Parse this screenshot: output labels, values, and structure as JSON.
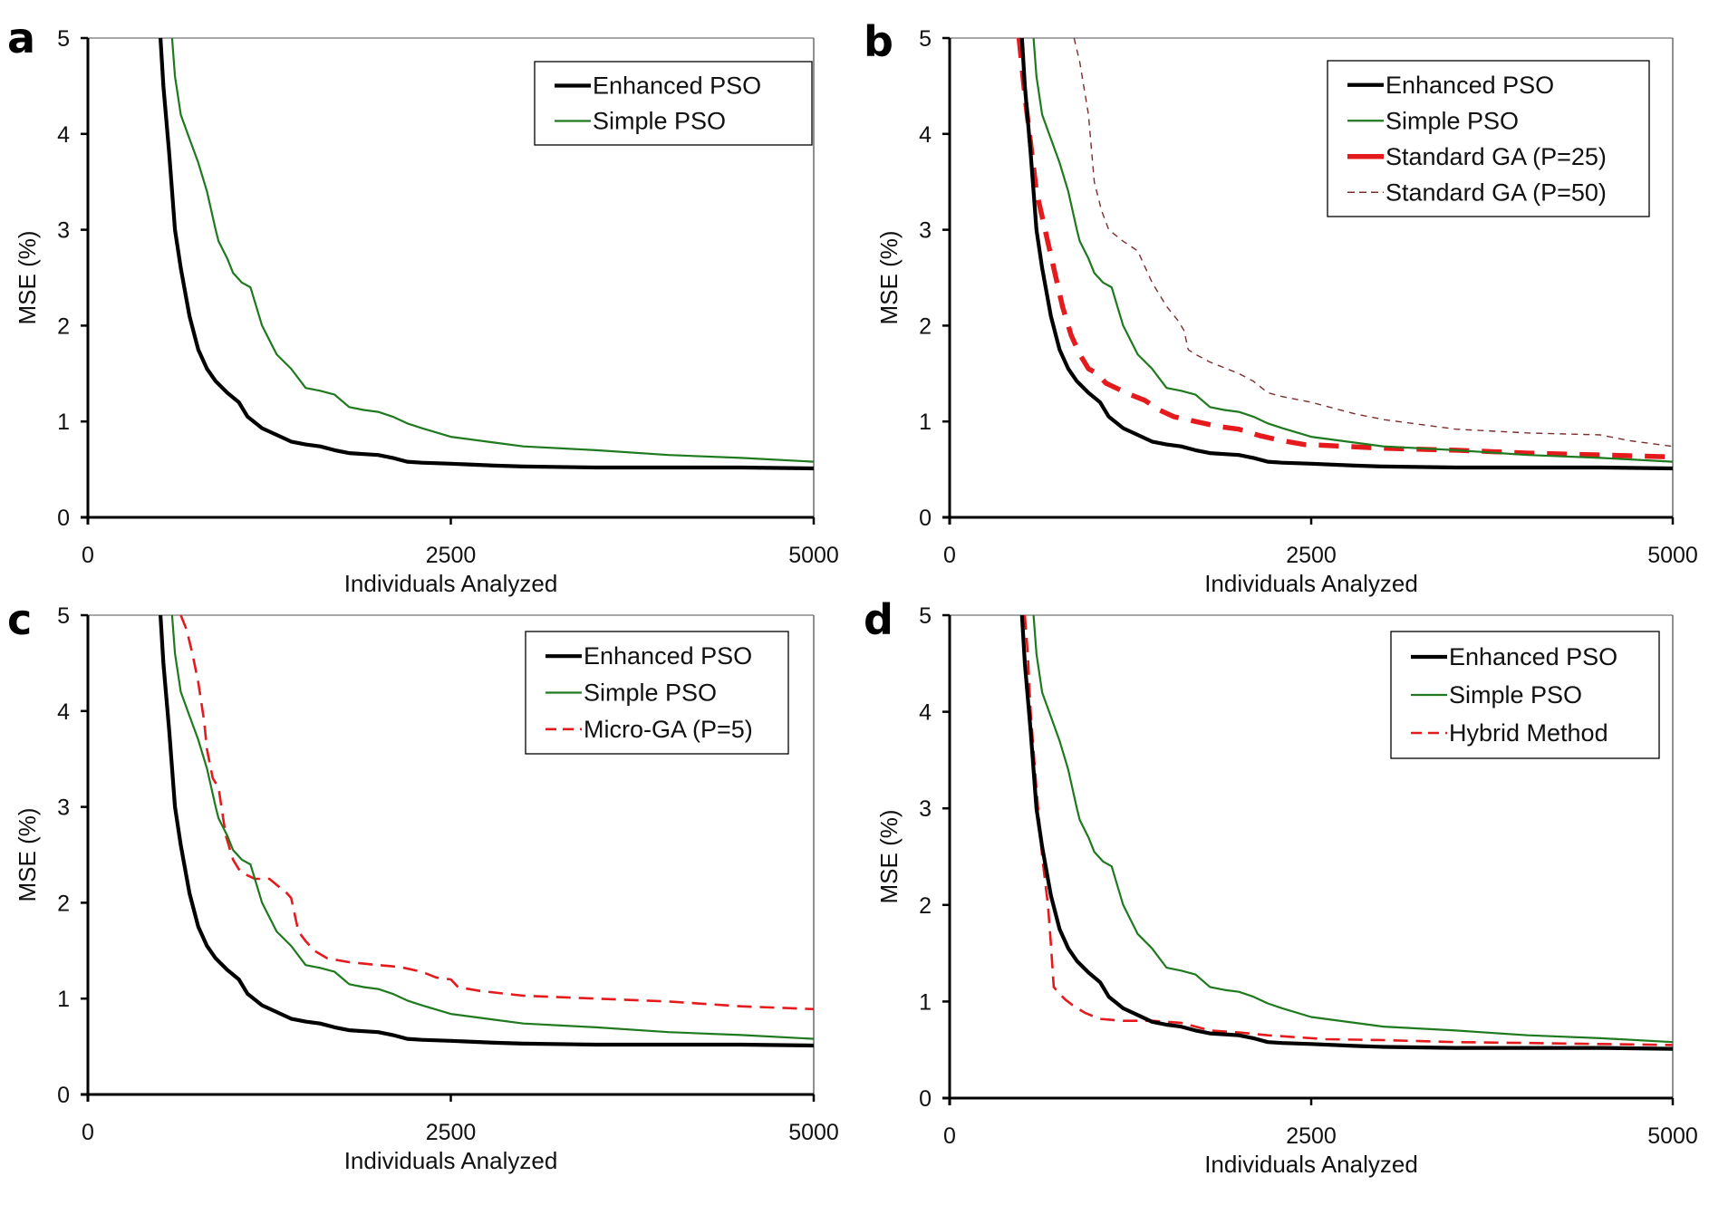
{
  "chart_data": [
    {
      "panel": "a",
      "type": "line",
      "title": "",
      "xlabel": "Individuals Analyzed",
      "ylabel": "MSE (%)",
      "xlim": [
        0,
        5000
      ],
      "ylim": [
        0,
        5
      ],
      "xticks": [
        "0",
        "2500",
        "5000"
      ],
      "yticks": [
        "0",
        "1",
        "2",
        "3",
        "4",
        "5"
      ],
      "grid": false,
      "legend_position": "top-right",
      "series": [
        {
          "name": "Enhanced PSO",
          "style": "solid-thick",
          "color": "#000000",
          "x": [
            500,
            520,
            560,
            600,
            640,
            700,
            760,
            820,
            880,
            960,
            1040,
            1100,
            1200,
            1300,
            1400,
            1500,
            1600,
            1700,
            1800,
            1900,
            2000,
            2100,
            2200,
            2300,
            2500,
            2800,
            3000,
            3500,
            4000,
            4500,
            5000
          ],
          "y": [
            5.0,
            4.5,
            3.8,
            3.0,
            2.6,
            2.1,
            1.75,
            1.55,
            1.42,
            1.3,
            1.2,
            1.05,
            0.93,
            0.86,
            0.79,
            0.76,
            0.74,
            0.7,
            0.67,
            0.66,
            0.65,
            0.62,
            0.58,
            0.57,
            0.56,
            0.54,
            0.53,
            0.52,
            0.52,
            0.52,
            0.51
          ]
        },
        {
          "name": "Simple PSO",
          "style": "solid-thin",
          "color": "#1f7a1f",
          "x": [
            580,
            600,
            640,
            700,
            760,
            820,
            880,
            900,
            960,
            1000,
            1060,
            1120,
            1160,
            1200,
            1300,
            1400,
            1500,
            1600,
            1700,
            1800,
            1900,
            2000,
            2100,
            2200,
            2300,
            2500,
            2800,
            3000,
            3500,
            4000,
            4500,
            5000
          ],
          "y": [
            5.0,
            4.6,
            4.2,
            3.95,
            3.7,
            3.4,
            3.0,
            2.88,
            2.7,
            2.55,
            2.45,
            2.4,
            2.2,
            2.0,
            1.7,
            1.55,
            1.35,
            1.32,
            1.28,
            1.15,
            1.12,
            1.1,
            1.05,
            0.98,
            0.93,
            0.84,
            0.78,
            0.74,
            0.7,
            0.65,
            0.62,
            0.58
          ]
        }
      ]
    },
    {
      "panel": "b",
      "type": "line",
      "title": "",
      "xlabel": "Individuals Analyzed",
      "ylabel": "MSE (%)",
      "xlim": [
        0,
        5000
      ],
      "ylim": [
        0,
        5
      ],
      "xticks": [
        "0",
        "2500",
        "5000"
      ],
      "yticks": [
        "0",
        "1",
        "2",
        "3",
        "4",
        "5"
      ],
      "grid": false,
      "legend_position": "top-right",
      "series": [
        {
          "name": "Enhanced PSO",
          "style": "solid-thick",
          "color": "#000000",
          "x": [
            500,
            520,
            560,
            600,
            640,
            700,
            760,
            820,
            880,
            960,
            1040,
            1100,
            1200,
            1300,
            1400,
            1500,
            1600,
            1700,
            1800,
            1900,
            2000,
            2100,
            2200,
            2300,
            2500,
            2800,
            3000,
            3500,
            4000,
            4500,
            5000
          ],
          "y": [
            5.0,
            4.5,
            3.8,
            3.0,
            2.6,
            2.1,
            1.75,
            1.55,
            1.42,
            1.3,
            1.2,
            1.05,
            0.93,
            0.86,
            0.79,
            0.76,
            0.74,
            0.7,
            0.67,
            0.66,
            0.65,
            0.62,
            0.58,
            0.57,
            0.56,
            0.54,
            0.53,
            0.52,
            0.52,
            0.52,
            0.51
          ]
        },
        {
          "name": "Simple PSO",
          "style": "solid-thin",
          "color": "#1f7a1f",
          "x": [
            580,
            600,
            640,
            700,
            760,
            820,
            880,
            900,
            960,
            1000,
            1060,
            1120,
            1160,
            1200,
            1300,
            1400,
            1500,
            1600,
            1700,
            1800,
            1900,
            2000,
            2100,
            2200,
            2300,
            2500,
            2800,
            3000,
            3500,
            4000,
            4500,
            5000
          ],
          "y": [
            5.0,
            4.6,
            4.2,
            3.95,
            3.7,
            3.4,
            3.0,
            2.88,
            2.7,
            2.55,
            2.45,
            2.4,
            2.2,
            2.0,
            1.7,
            1.55,
            1.35,
            1.32,
            1.28,
            1.15,
            1.12,
            1.1,
            1.05,
            0.98,
            0.93,
            0.84,
            0.78,
            0.74,
            0.7,
            0.65,
            0.62,
            0.58
          ]
        },
        {
          "name": "Standard GA (P=25)",
          "style": "dashed-thick",
          "color": "#e41a1c",
          "x": [
            480,
            520,
            560,
            600,
            660,
            720,
            780,
            840,
            900,
            960,
            1020,
            1080,
            1150,
            1250,
            1350,
            1450,
            1550,
            1700,
            1850,
            2000,
            2150,
            2300,
            2450,
            2600,
            3000,
            3500,
            4000,
            4500,
            5000
          ],
          "y": [
            5.0,
            4.4,
            3.9,
            3.4,
            3.0,
            2.6,
            2.2,
            1.9,
            1.7,
            1.55,
            1.5,
            1.4,
            1.35,
            1.28,
            1.22,
            1.12,
            1.05,
            1.0,
            0.95,
            0.92,
            0.85,
            0.8,
            0.76,
            0.75,
            0.72,
            0.7,
            0.67,
            0.65,
            0.63
          ]
        },
        {
          "name": "Standard GA (P=50)",
          "style": "dashed-thin",
          "color": "#7b2d2d",
          "x": [
            860,
            900,
            960,
            1000,
            1050,
            1100,
            1200,
            1300,
            1400,
            1500,
            1580,
            1620,
            1650,
            1700,
            1800,
            1900,
            2000,
            2100,
            2200,
            2300,
            2500,
            2800,
            3000,
            3500,
            4000,
            4500,
            4700,
            5000
          ],
          "y": [
            5.0,
            4.75,
            4.2,
            3.5,
            3.2,
            3.0,
            2.88,
            2.78,
            2.45,
            2.2,
            2.05,
            1.95,
            1.75,
            1.7,
            1.62,
            1.56,
            1.5,
            1.42,
            1.3,
            1.26,
            1.2,
            1.08,
            1.02,
            0.92,
            0.88,
            0.86,
            0.8,
            0.74
          ]
        }
      ]
    },
    {
      "panel": "c",
      "type": "line",
      "title": "",
      "xlabel": "Individuals Analyzed",
      "ylabel": "MSE (%)",
      "xlim": [
        0,
        5000
      ],
      "ylim": [
        0,
        5
      ],
      "xticks": [
        "0",
        "2500",
        "5000"
      ],
      "yticks": [
        "0",
        "1",
        "2",
        "3",
        "4",
        "5"
      ],
      "grid": false,
      "legend_position": "top-right",
      "series": [
        {
          "name": "Enhanced PSO",
          "style": "solid-thick",
          "color": "#000000",
          "x": [
            500,
            520,
            560,
            600,
            640,
            700,
            760,
            820,
            880,
            960,
            1040,
            1100,
            1200,
            1300,
            1400,
            1500,
            1600,
            1700,
            1800,
            1900,
            2000,
            2100,
            2200,
            2300,
            2500,
            2800,
            3000,
            3500,
            4000,
            4500,
            5000
          ],
          "y": [
            5.0,
            4.5,
            3.8,
            3.0,
            2.6,
            2.1,
            1.75,
            1.55,
            1.42,
            1.3,
            1.2,
            1.05,
            0.93,
            0.86,
            0.79,
            0.76,
            0.74,
            0.7,
            0.67,
            0.66,
            0.65,
            0.62,
            0.58,
            0.57,
            0.56,
            0.54,
            0.53,
            0.52,
            0.52,
            0.52,
            0.51
          ]
        },
        {
          "name": "Simple PSO",
          "style": "solid-thin",
          "color": "#1f7a1f",
          "x": [
            580,
            600,
            640,
            700,
            760,
            820,
            880,
            900,
            960,
            1000,
            1060,
            1120,
            1160,
            1200,
            1300,
            1400,
            1500,
            1600,
            1700,
            1800,
            1900,
            2000,
            2100,
            2200,
            2300,
            2500,
            2800,
            3000,
            3500,
            4000,
            4500,
            5000
          ],
          "y": [
            5.0,
            4.6,
            4.2,
            3.95,
            3.7,
            3.4,
            3.0,
            2.88,
            2.7,
            2.55,
            2.45,
            2.4,
            2.2,
            2.0,
            1.7,
            1.55,
            1.35,
            1.32,
            1.28,
            1.15,
            1.12,
            1.1,
            1.05,
            0.98,
            0.93,
            0.84,
            0.78,
            0.74,
            0.7,
            0.65,
            0.62,
            0.58
          ]
        },
        {
          "name": "Micro-GA (P=5)",
          "style": "dashed-medium",
          "color": "#e41a1c",
          "x": [
            640,
            680,
            720,
            760,
            800,
            820,
            860,
            900,
            940,
            950,
            1000,
            1040,
            1080,
            1150,
            1250,
            1370,
            1400,
            1450,
            1500,
            1560,
            1650,
            1800,
            2000,
            2150,
            2300,
            2400,
            2500,
            2550,
            2700,
            3000,
            3500,
            4000,
            4500,
            5000
          ],
          "y": [
            5.0,
            4.85,
            4.6,
            4.3,
            3.9,
            3.6,
            3.3,
            3.2,
            2.8,
            2.7,
            2.45,
            2.35,
            2.3,
            2.25,
            2.25,
            2.1,
            2.05,
            1.7,
            1.6,
            1.5,
            1.42,
            1.38,
            1.35,
            1.33,
            1.28,
            1.22,
            1.2,
            1.12,
            1.08,
            1.03,
            1.0,
            0.97,
            0.92,
            0.89
          ]
        }
      ]
    },
    {
      "panel": "d",
      "type": "line",
      "title": "",
      "xlabel": "Individuals Analyzed",
      "ylabel": "MSE (%)",
      "xlim": [
        0,
        5000
      ],
      "ylim": [
        0,
        5
      ],
      "xticks": [
        "0",
        "2500",
        "5000"
      ],
      "yticks": [
        "0",
        "1",
        "2",
        "3",
        "4",
        "5"
      ],
      "grid": false,
      "legend_position": "top-right",
      "series": [
        {
          "name": "Enhanced PSO",
          "style": "solid-thick",
          "color": "#000000",
          "x": [
            500,
            520,
            560,
            600,
            640,
            700,
            760,
            820,
            880,
            960,
            1040,
            1100,
            1200,
            1300,
            1400,
            1500,
            1600,
            1700,
            1800,
            1900,
            2000,
            2100,
            2200,
            2300,
            2500,
            2800,
            3000,
            3500,
            4000,
            4500,
            5000
          ],
          "y": [
            5.0,
            4.5,
            3.8,
            3.0,
            2.6,
            2.1,
            1.75,
            1.55,
            1.42,
            1.3,
            1.2,
            1.05,
            0.93,
            0.86,
            0.79,
            0.76,
            0.74,
            0.7,
            0.67,
            0.66,
            0.65,
            0.62,
            0.58,
            0.57,
            0.56,
            0.54,
            0.53,
            0.52,
            0.52,
            0.52,
            0.51
          ]
        },
        {
          "name": "Simple PSO",
          "style": "solid-thin",
          "color": "#1f7a1f",
          "x": [
            580,
            600,
            640,
            700,
            760,
            820,
            880,
            900,
            960,
            1000,
            1060,
            1120,
            1160,
            1200,
            1300,
            1400,
            1500,
            1600,
            1700,
            1800,
            1900,
            2000,
            2100,
            2200,
            2300,
            2500,
            2800,
            3000,
            3500,
            4000,
            4500,
            5000
          ],
          "y": [
            5.0,
            4.6,
            4.2,
            3.95,
            3.7,
            3.4,
            3.0,
            2.88,
            2.7,
            2.55,
            2.45,
            2.4,
            2.2,
            2.0,
            1.7,
            1.55,
            1.35,
            1.32,
            1.28,
            1.15,
            1.12,
            1.1,
            1.05,
            0.98,
            0.93,
            0.84,
            0.78,
            0.74,
            0.7,
            0.65,
            0.62,
            0.58
          ]
        },
        {
          "name": "Hybrid Method",
          "style": "dashed-medium",
          "color": "#e41a1c",
          "x": [
            520,
            540,
            560,
            600,
            640,
            680,
            700,
            720,
            760,
            800,
            860,
            940,
            1040,
            1200,
            1400,
            1600,
            1800,
            2000,
            2200,
            2400,
            2600,
            3000,
            3500,
            4000,
            4500,
            5000
          ],
          "y": [
            5.0,
            4.6,
            4.0,
            3.2,
            2.5,
            2.0,
            1.6,
            1.15,
            1.08,
            1.02,
            0.95,
            0.88,
            0.82,
            0.8,
            0.8,
            0.78,
            0.7,
            0.68,
            0.65,
            0.63,
            0.61,
            0.6,
            0.58,
            0.57,
            0.56,
            0.55
          ]
        }
      ]
    }
  ]
}
